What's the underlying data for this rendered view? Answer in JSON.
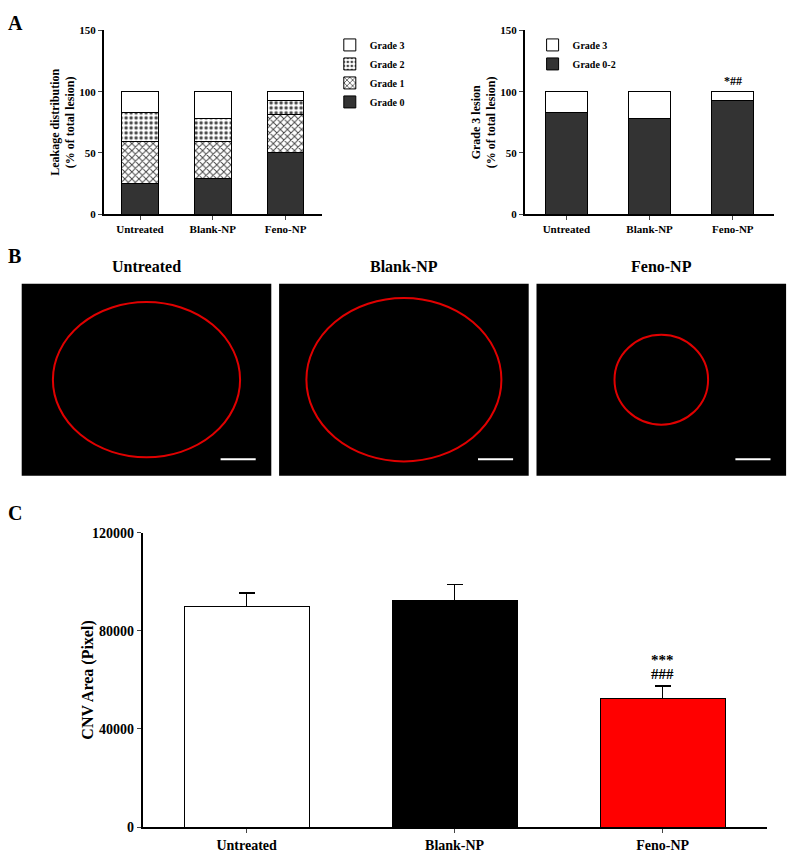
{
  "chart_data": [
    {
      "panel": "A",
      "type": "bar",
      "stacked": true,
      "categories": [
        "Untreated",
        "Blank-NP",
        "Feno-NP"
      ],
      "series": [
        {
          "name": "Grade 0",
          "color": "#333333",
          "values": [
            25,
            29,
            50
          ]
        },
        {
          "name": "Grade 1",
          "color": "#ffffff",
          "marker": "x",
          "values": [
            34,
            30,
            31
          ]
        },
        {
          "name": "Grade 2",
          "color": "#ffffff",
          "marker": ".",
          "values": [
            24,
            19,
            12
          ]
        },
        {
          "name": "Grade 3",
          "color": "#ffffff",
          "values": [
            17,
            22,
            7
          ]
        }
      ],
      "y_label": [
        "Leakage distribution",
        "(% of total lesion)"
      ],
      "ylim": [
        0,
        150
      ],
      "yticks": [
        0,
        50,
        100,
        150
      ],
      "grid": false,
      "legend": "right"
    },
    {
      "type": "bar",
      "stacked": true,
      "categories": [
        "Untreated",
        "Blank-NP",
        "Feno-NP"
      ],
      "series": [
        {
          "name": "Grade 0-2",
          "color": "#333333",
          "values": [
            83,
            78,
            93
          ]
        },
        {
          "name": "Grade 3",
          "color": "#ffffff",
          "values": [
            17,
            22,
            7
          ]
        }
      ],
      "y_label": [
        "Grade 3 lesion",
        "(% of total lesion)"
      ],
      "ylim": [
        0,
        150
      ],
      "yticks": [
        0,
        50,
        100,
        150
      ],
      "grid": false,
      "legend": "upper left",
      "annotations": [
        {
          "category": "Feno-NP",
          "text": "*##"
        }
      ]
    },
    {
      "panel": "B",
      "type": "image",
      "titles": [
        "Untreated",
        "Blank-NP",
        "Feno-NP"
      ]
    },
    {
      "panel": "C",
      "type": "bar",
      "categories": [
        "Untreated",
        "Blank-NP",
        "Feno-NP"
      ],
      "values": [
        90000,
        92500,
        52500
      ],
      "errors": [
        5500,
        6500,
        5000
      ],
      "colors": [
        "#ffffff",
        "#000000",
        "#ff0000"
      ],
      "y_label": [
        "CNV Area (Pixel)"
      ],
      "ylim": [
        0,
        120000
      ],
      "yticks": [
        0,
        40000,
        80000,
        120000
      ],
      "grid": false,
      "annotations": [
        {
          "category": "Feno-NP",
          "text": "***"
        },
        {
          "category": "Feno-NP",
          "text": "###"
        }
      ]
    }
  ]
}
